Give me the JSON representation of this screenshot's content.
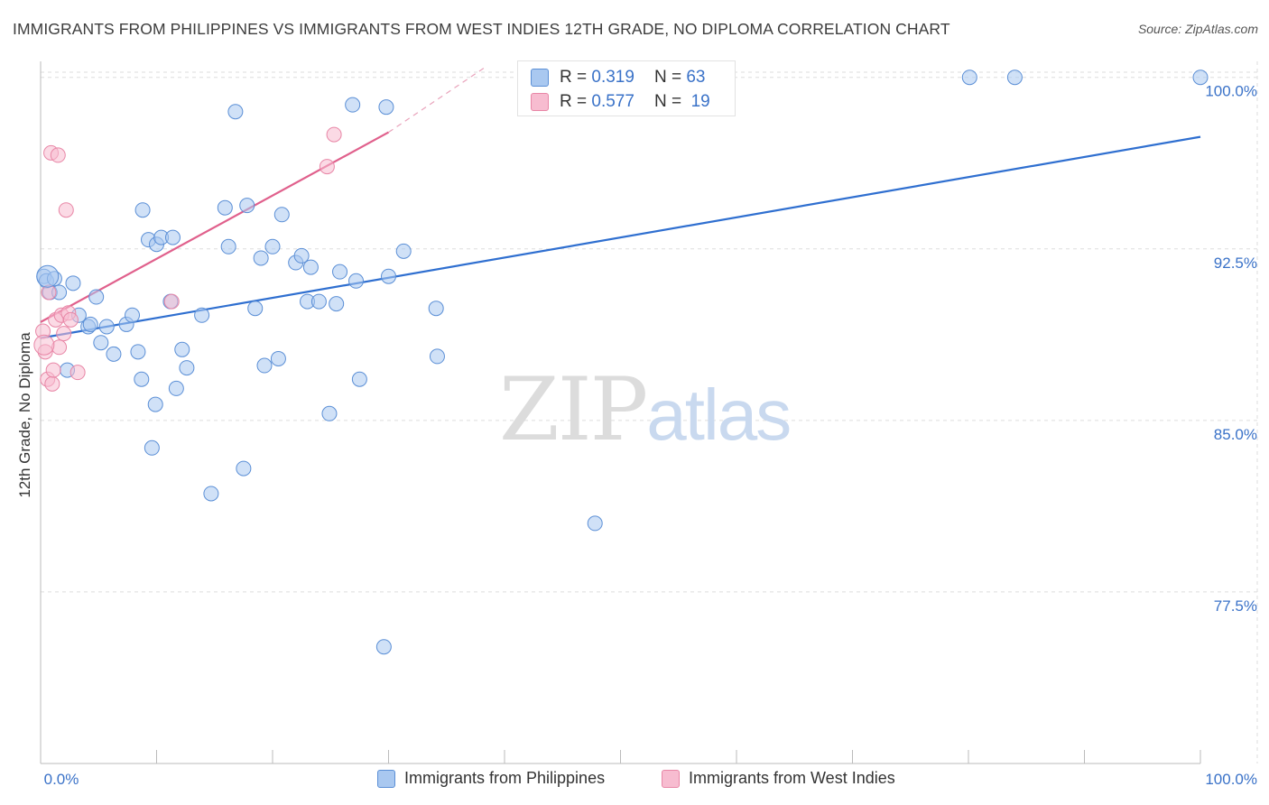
{
  "title": "IMMIGRANTS FROM PHILIPPINES VS IMMIGRANTS FROM WEST INDIES 12TH GRADE, NO DIPLOMA CORRELATION CHART",
  "source": "Source: ZipAtlas.com",
  "watermark": {
    "zip": "ZIP",
    "atlas": "atlas"
  },
  "legend": {
    "r_label": "R =",
    "n_label": "N =",
    "series": [
      {
        "name": "Immigrants from Philippines",
        "r": "0.319",
        "n": "63"
      },
      {
        "name": "Immigrants from West Indies",
        "r": "0.577",
        "n": "19"
      }
    ]
  },
  "chart_data": {
    "type": "scatter",
    "title": "IMMIGRANTS FROM PHILIPPINES VS IMMIGRANTS FROM WEST INDIES 12TH GRADE, NO DIPLOMA CORRELATION CHART",
    "xlabel": "",
    "ylabel": "12th Grade, No Diploma",
    "xlim": [
      0,
      100
    ],
    "ylim": [
      70.0,
      100.7
    ],
    "x_tick_labels": [
      "0.0%",
      "100.0%"
    ],
    "y_ticks": [
      77.5,
      85.0,
      92.5,
      100.0
    ],
    "y_tick_labels": [
      "77.5%",
      "85.0%",
      "92.5%",
      "100.0%"
    ],
    "grid": true,
    "colors": {
      "philippines_fill": "#a9c8f0",
      "philippines_stroke": "#5b8fd6",
      "philippines_line": "#2f6fd0",
      "westindies_fill": "#f7bcd0",
      "westindies_stroke": "#e886a6",
      "westindies_line": "#e0608c",
      "tick_label": "#3a72c8",
      "grid": "#dddddd"
    },
    "series": [
      {
        "name": "Immigrants from Philippines",
        "trend": {
          "x": [
            0,
            100
          ],
          "y": [
            88.6,
            97.4
          ]
        },
        "points": [
          [
            0.3,
            91.3
          ],
          [
            0.5,
            91.1
          ],
          [
            0.8,
            90.6
          ],
          [
            1.2,
            91.2
          ],
          [
            1.6,
            90.6
          ],
          [
            2.3,
            87.2
          ],
          [
            2.8,
            91.0
          ],
          [
            3.3,
            89.6
          ],
          [
            4.1,
            89.1
          ],
          [
            4.3,
            89.2
          ],
          [
            4.8,
            90.4
          ],
          [
            5.2,
            88.4
          ],
          [
            5.7,
            89.1
          ],
          [
            6.3,
            87.9
          ],
          [
            7.4,
            89.2
          ],
          [
            7.9,
            89.6
          ],
          [
            8.4,
            88.0
          ],
          [
            8.7,
            86.8
          ],
          [
            8.8,
            94.2
          ],
          [
            9.3,
            92.9
          ],
          [
            9.6,
            83.8
          ],
          [
            9.9,
            85.7
          ],
          [
            10.0,
            92.7
          ],
          [
            10.4,
            93.0
          ],
          [
            11.2,
            90.2
          ],
          [
            11.4,
            93.0
          ],
          [
            11.7,
            86.4
          ],
          [
            12.2,
            88.1
          ],
          [
            12.6,
            87.3
          ],
          [
            13.9,
            89.6
          ],
          [
            14.7,
            81.8
          ],
          [
            15.9,
            94.3
          ],
          [
            16.2,
            92.6
          ],
          [
            16.8,
            98.5
          ],
          [
            17.5,
            82.9
          ],
          [
            17.8,
            94.4
          ],
          [
            18.5,
            89.9
          ],
          [
            19.0,
            92.1
          ],
          [
            19.3,
            87.4
          ],
          [
            20.0,
            92.6
          ],
          [
            20.5,
            87.7
          ],
          [
            20.8,
            94.0
          ],
          [
            22.0,
            91.9
          ],
          [
            22.5,
            92.2
          ],
          [
            23.0,
            90.2
          ],
          [
            23.3,
            91.7
          ],
          [
            24.0,
            90.2
          ],
          [
            24.9,
            85.3
          ],
          [
            25.5,
            90.1
          ],
          [
            25.8,
            91.5
          ],
          [
            26.9,
            98.8
          ],
          [
            27.2,
            91.1
          ],
          [
            27.5,
            86.8
          ],
          [
            29.6,
            75.1
          ],
          [
            29.8,
            98.7
          ],
          [
            30.0,
            91.3
          ],
          [
            31.3,
            92.4
          ],
          [
            34.1,
            89.9
          ],
          [
            34.2,
            87.8
          ],
          [
            47.8,
            80.5
          ],
          [
            80.1,
            100.0
          ],
          [
            84.0,
            100.0
          ],
          [
            100.0,
            100.0
          ]
        ]
      },
      {
        "name": "Immigrants from West Indies",
        "trend": {
          "x": [
            0,
            30.0
          ],
          "y": [
            89.3,
            97.6
          ]
        },
        "trend_dashed": {
          "x": [
            30.0,
            38.5
          ],
          "y": [
            97.6,
            100.5
          ]
        },
        "points": [
          [
            0.2,
            88.9
          ],
          [
            0.4,
            88.0
          ],
          [
            0.6,
            86.8
          ],
          [
            0.7,
            90.6
          ],
          [
            0.9,
            96.7
          ],
          [
            1.0,
            86.6
          ],
          [
            1.1,
            87.2
          ],
          [
            1.3,
            89.4
          ],
          [
            1.5,
            96.6
          ],
          [
            1.6,
            88.2
          ],
          [
            1.8,
            89.6
          ],
          [
            2.0,
            88.8
          ],
          [
            2.2,
            94.2
          ],
          [
            2.4,
            89.7
          ],
          [
            2.6,
            89.4
          ],
          [
            3.2,
            87.1
          ],
          [
            11.3,
            90.2
          ],
          [
            24.7,
            96.1
          ],
          [
            25.3,
            97.5
          ]
        ]
      }
    ]
  }
}
